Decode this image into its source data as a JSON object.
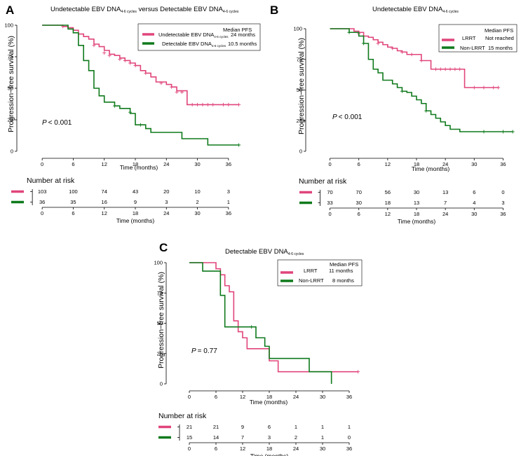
{
  "colors": {
    "pink": "#e0457b",
    "green": "#0f7a1c",
    "axis": "#000000"
  },
  "chart_data": [
    {
      "id": "A",
      "type": "line",
      "panel_label": "A",
      "title_main": "Undetectable EBV DNA",
      "title_sub1": "4-6 cycles",
      "title_mid": " versus Detectable EBV DNA",
      "title_sub2": "4-6 cycles",
      "xlabel": "Time (months)",
      "ylabel": "Progression−free survival (%)",
      "xlim": [
        -3,
        39
      ],
      "ylim": [
        0,
        100
      ],
      "xticks": [
        "0",
        "6",
        "12",
        "18",
        "24",
        "30",
        "36"
      ],
      "yticks": [
        "0",
        "25",
        "50",
        "75",
        "100"
      ],
      "legend": {
        "header": "Median PFS",
        "entries": [
          {
            "label": "Undetectable EBV DNA",
            "sub": "4-6 cycles",
            "value": "24 months"
          },
          {
            "label": "Detectable EBV DNA",
            "sub": "4-6 cycles",
            "value": "10.5 months"
          }
        ]
      },
      "pvalue": "< 0.001",
      "p_letter": "P",
      "risk_title": "Number at risk",
      "series": [
        {
          "name": "Undetectable",
          "color_key": "pink",
          "steps": [
            [
              0,
              100
            ],
            [
              4,
              99
            ],
            [
              5,
              98
            ],
            [
              6,
              96
            ],
            [
              7,
              93
            ],
            [
              8,
              91
            ],
            [
              9,
              89
            ],
            [
              10,
              85
            ],
            [
              11,
              83
            ],
            [
              12,
              80
            ],
            [
              13,
              77
            ],
            [
              14,
              76
            ],
            [
              15,
              74
            ],
            [
              16,
              72
            ],
            [
              17,
              70
            ],
            [
              18,
              68
            ],
            [
              19,
              64
            ],
            [
              20,
              62
            ],
            [
              21,
              59
            ],
            [
              22,
              55
            ],
            [
              24,
              53
            ],
            [
              25,
              51
            ],
            [
              26,
              48
            ],
            [
              28,
              37
            ],
            [
              38,
              37
            ]
          ],
          "censors": [
            [
              4,
              99
            ],
            [
              10,
              84
            ],
            [
              12,
              78
            ],
            [
              13,
              76
            ],
            [
              15,
              73
            ],
            [
              16,
              72
            ],
            [
              17,
              70
            ],
            [
              18,
              68
            ],
            [
              20,
              62
            ],
            [
              23,
              54
            ],
            [
              25,
              51
            ],
            [
              26,
              47
            ],
            [
              27,
              47
            ],
            [
              29,
              37
            ],
            [
              30,
              37
            ],
            [
              31,
              37
            ],
            [
              32,
              37
            ],
            [
              33,
              37
            ],
            [
              35,
              37
            ],
            [
              36,
              37
            ],
            [
              38,
              37
            ]
          ],
          "at_risk": [
            "103",
            "100",
            "74",
            "43",
            "20",
            "10",
            "3"
          ]
        },
        {
          "name": "Detectable",
          "color_key": "green",
          "steps": [
            [
              0,
              100
            ],
            [
              5,
              97
            ],
            [
              6,
              94
            ],
            [
              7,
              84
            ],
            [
              8,
              72
            ],
            [
              9,
              64
            ],
            [
              10,
              50
            ],
            [
              11,
              44
            ],
            [
              12,
              39
            ],
            [
              14,
              36
            ],
            [
              15,
              34
            ],
            [
              17,
              30
            ],
            [
              18,
              21
            ],
            [
              20,
              18
            ],
            [
              21,
              15
            ],
            [
              27,
              10
            ],
            [
              32,
              5
            ],
            [
              38,
              5
            ]
          ],
          "censors": [
            [
              14,
              36
            ],
            [
              17,
              31
            ],
            [
              19,
              21
            ],
            [
              38,
              5
            ]
          ],
          "at_risk": [
            "36",
            "35",
            "16",
            "9",
            "3",
            "2",
            "1"
          ]
        }
      ]
    },
    {
      "id": "B",
      "type": "line",
      "panel_label": "B",
      "title_main": "Undetectable EBV DNA",
      "title_sub1": "4-6 cycles",
      "title_mid": "",
      "title_sub2": "",
      "xlabel": "Time (months)",
      "ylabel": "Progression−free survival (%)",
      "xlim": [
        -3,
        39
      ],
      "ylim": [
        0,
        100
      ],
      "xticks": [
        "0",
        "6",
        "12",
        "18",
        "24",
        "30",
        "36"
      ],
      "yticks": [
        "0",
        "25",
        "50",
        "75",
        "100"
      ],
      "legend": {
        "header": "Median PFS",
        "entries": [
          {
            "label": "LRRT",
            "sub": "",
            "value": "Not reached"
          },
          {
            "label": "Non-LRRT",
            "sub": "",
            "value": "15 months"
          }
        ]
      },
      "pvalue": "< 0.001",
      "p_letter": "P",
      "risk_title": "Number at risk",
      "series": [
        {
          "name": "LRRT",
          "color_key": "pink",
          "steps": [
            [
              0,
              100
            ],
            [
              5,
              98
            ],
            [
              6,
              97
            ],
            [
              7,
              94
            ],
            [
              8,
              93
            ],
            [
              9,
              91
            ],
            [
              10,
              89
            ],
            [
              11,
              87
            ],
            [
              12,
              85
            ],
            [
              13,
              84
            ],
            [
              14,
              82
            ],
            [
              15,
              81
            ],
            [
              16,
              79
            ],
            [
              19,
              74
            ],
            [
              20,
              74
            ],
            [
              21,
              67
            ],
            [
              28,
              52
            ],
            [
              35,
              52
            ]
          ],
          "censors": [
            [
              6,
              96
            ],
            [
              10,
              88
            ],
            [
              13,
              84
            ],
            [
              15,
              81
            ],
            [
              17,
              79
            ],
            [
              19,
              74
            ],
            [
              22,
              67
            ],
            [
              23,
              67
            ],
            [
              24,
              67
            ],
            [
              25,
              67
            ],
            [
              26,
              67
            ],
            [
              27,
              67
            ],
            [
              30,
              52
            ],
            [
              32,
              52
            ],
            [
              34,
              52
            ],
            [
              35,
              52
            ]
          ],
          "at_risk": [
            "70",
            "70",
            "56",
            "30",
            "13",
            "6",
            "0"
          ]
        },
        {
          "name": "Non-LRRT",
          "color_key": "green",
          "steps": [
            [
              0,
              100
            ],
            [
              4,
              97
            ],
            [
              6,
              94
            ],
            [
              7,
              88
            ],
            [
              8,
              75
            ],
            [
              9,
              67
            ],
            [
              10,
              64
            ],
            [
              11,
              58
            ],
            [
              13,
              55
            ],
            [
              14,
              52
            ],
            [
              15,
              49
            ],
            [
              16,
              48
            ],
            [
              17,
              45
            ],
            [
              18,
              42
            ],
            [
              19,
              39
            ],
            [
              20,
              33
            ],
            [
              21,
              30
            ],
            [
              22,
              27
            ],
            [
              23,
              24
            ],
            [
              24,
              21
            ],
            [
              25,
              18
            ],
            [
              27,
              16
            ],
            [
              38,
              16
            ]
          ],
          "censors": [
            [
              4,
              97
            ],
            [
              7,
              88
            ],
            [
              15,
              49
            ],
            [
              20,
              33
            ],
            [
              32,
              16
            ],
            [
              36,
              16
            ],
            [
              38,
              16
            ]
          ],
          "at_risk": [
            "33",
            "30",
            "18",
            "13",
            "7",
            "4",
            "3"
          ]
        }
      ]
    },
    {
      "id": "C",
      "type": "line",
      "panel_label": "C",
      "title_main": "Detectable EBV DNA",
      "title_sub1": "4-6 cycles",
      "title_mid": "",
      "title_sub2": "",
      "xlabel": "Time (months)",
      "ylabel": "Progression−free survival (%)",
      "xlim": [
        -3,
        39
      ],
      "ylim": [
        0,
        100
      ],
      "xticks": [
        "0",
        "6",
        "12",
        "18",
        "24",
        "30",
        "36"
      ],
      "yticks": [
        "0",
        "25",
        "50",
        "75",
        "100"
      ],
      "legend": {
        "header": "Median PFS",
        "entries": [
          {
            "label": "LRRT",
            "sub": "",
            "value": "11 months"
          },
          {
            "label": "Non-LRRT",
            "sub": "",
            "value": "8 months"
          }
        ]
      },
      "pvalue": "= 0.77",
      "p_letter": "P",
      "risk_title": "Number at risk",
      "series": [
        {
          "name": "LRRT",
          "color_key": "pink",
          "steps": [
            [
              0,
              100
            ],
            [
              6,
              95
            ],
            [
              7,
              90
            ],
            [
              8,
              81
            ],
            [
              9,
              76
            ],
            [
              10,
              52
            ],
            [
              11,
              43
            ],
            [
              12,
              38
            ],
            [
              13,
              29
            ],
            [
              18,
              19
            ],
            [
              20,
              10
            ],
            [
              38,
              10
            ]
          ],
          "censors": [
            [
              38,
              10
            ]
          ],
          "at_risk": [
            "21",
            "21",
            "9",
            "6",
            "1",
            "1",
            "1"
          ]
        },
        {
          "name": "Non-LRRT",
          "color_key": "green",
          "steps": [
            [
              0,
              100
            ],
            [
              3,
              93
            ],
            [
              7,
              73
            ],
            [
              8,
              47
            ],
            [
              14,
              47
            ],
            [
              15,
              38
            ],
            [
              17,
              31
            ],
            [
              18,
              21
            ],
            [
              27,
              10
            ],
            [
              32,
              0
            ]
          ],
          "censors": [
            [
              14,
              47
            ]
          ],
          "at_risk": [
            "15",
            "14",
            "7",
            "3",
            "2",
            "1",
            "0"
          ]
        }
      ]
    }
  ]
}
